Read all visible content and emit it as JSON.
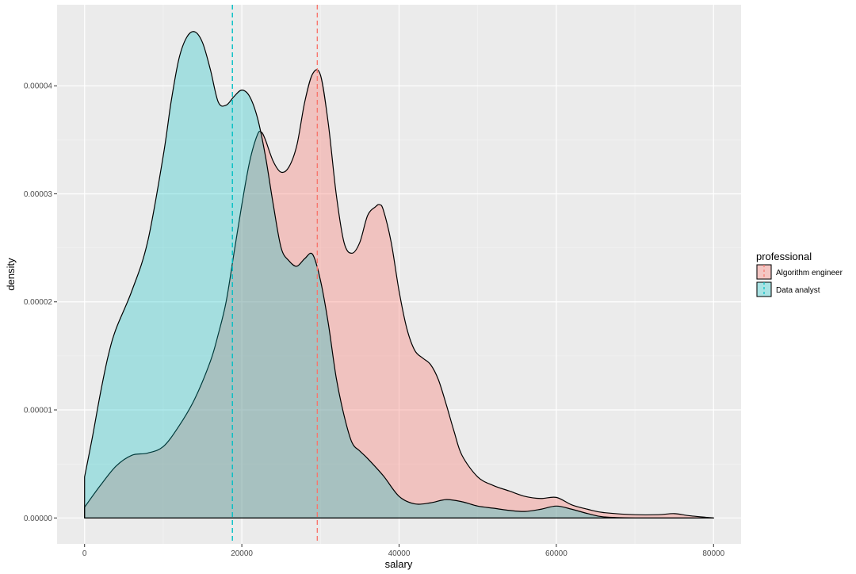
{
  "chart_data": {
    "type": "area",
    "subtype": "density",
    "xlabel": "salary",
    "ylabel": "density",
    "xlim": [
      -3500,
      83500
    ],
    "ylim": [
      -2.4e-06,
      4.75e-05
    ],
    "x_ticks": [
      0,
      20000,
      40000,
      60000,
      80000
    ],
    "x_tick_labels": [
      "0",
      "20000",
      "40000",
      "60000",
      "80000"
    ],
    "y_ticks": [
      0,
      1e-05,
      2e-05,
      3e-05,
      4e-05
    ],
    "y_tick_labels": [
      "0.00000",
      "0.00001",
      "0.00002",
      "0.00003",
      "0.00004"
    ],
    "grid": true,
    "legend": {
      "title": "professional",
      "position": "right"
    },
    "series": [
      {
        "name": "Algorithm engineer",
        "color": "#F8766D",
        "fill_alpha": 0.35,
        "mean": 29600,
        "x": [
          0,
          2000,
          4000,
          6000,
          8000,
          10000,
          12000,
          14000,
          16000,
          17000,
          18000,
          19000,
          20000,
          21000,
          22000,
          22500,
          23000,
          24000,
          25000,
          26000,
          27000,
          28000,
          29000,
          30000,
          31000,
          32000,
          33000,
          34000,
          35000,
          36000,
          37000,
          37500,
          38000,
          39000,
          40000,
          41000,
          42000,
          43000,
          44000,
          45000,
          46000,
          47000,
          48000,
          50000,
          52000,
          54000,
          56000,
          58000,
          60000,
          62000,
          64000,
          66000,
          70000,
          73000,
          75000,
          77000,
          80000
        ],
        "y": [
          1e-06,
          3e-06,
          4.8e-06,
          5.8e-06,
          6e-06,
          6.6e-06,
          8.5e-06,
          1.1e-05,
          1.45e-05,
          1.7e-05,
          2e-05,
          2.45e-05,
          2.9e-05,
          3.3e-05,
          3.55e-05,
          3.57e-05,
          3.5e-05,
          3.3e-05,
          3.2e-05,
          3.25e-05,
          3.45e-05,
          3.85e-05,
          4.11e-05,
          4.1e-05,
          3.65e-05,
          3e-05,
          2.55e-05,
          2.45e-05,
          2.55e-05,
          2.8e-05,
          2.88e-05,
          2.9e-05,
          2.85e-05,
          2.55e-05,
          2.1e-05,
          1.75e-05,
          1.55e-05,
          1.48e-05,
          1.42e-05,
          1.28e-05,
          1.05e-05,
          8e-06,
          5.8e-06,
          3.8e-06,
          3e-06,
          2.5e-06,
          2e-06,
          1.8e-06,
          1.9e-06,
          1.2e-06,
          8e-07,
          5e-07,
          3e-07,
          3e-07,
          4e-07,
          2e-07,
          0
        ]
      },
      {
        "name": "Data analyst",
        "color": "#00BFC4",
        "fill_alpha": 0.3,
        "mean": 18800,
        "x": [
          0,
          1000,
          2000,
          3000,
          4000,
          6000,
          8000,
          10000,
          11000,
          12000,
          13000,
          14000,
          15000,
          16000,
          17000,
          18000,
          19000,
          20000,
          21000,
          22000,
          23000,
          24000,
          25000,
          26000,
          27000,
          28000,
          29000,
          30000,
          31000,
          32000,
          33000,
          34000,
          35000,
          36000,
          38000,
          40000,
          42000,
          44000,
          46000,
          48000,
          50000,
          52000,
          54000,
          56000,
          58000,
          60000,
          62000,
          64000,
          66000,
          70000,
          80000
        ],
        "y": [
          3.8e-06,
          7.5e-06,
          1.15e-05,
          1.5e-05,
          1.75e-05,
          2.1e-05,
          2.55e-05,
          3.35e-05,
          3.85e-05,
          4.25e-05,
          4.45e-05,
          4.5e-05,
          4.4e-05,
          4.15e-05,
          3.85e-05,
          3.82e-05,
          3.9e-05,
          3.96e-05,
          3.9e-05,
          3.7e-05,
          3.35e-05,
          2.9e-05,
          2.5e-05,
          2.38e-05,
          2.33e-05,
          2.4e-05,
          2.44e-05,
          2.2e-05,
          1.8e-05,
          1.3e-05,
          9.5e-06,
          7e-06,
          6.2e-06,
          5.5e-06,
          3.9e-06,
          2e-06,
          1.3e-06,
          1.4e-06,
          1.7e-06,
          1.5e-06,
          1.1e-06,
          9e-07,
          7e-07,
          6e-07,
          8e-07,
          1.1e-06,
          8e-07,
          4e-07,
          1e-07,
          0,
          0
        ]
      }
    ]
  }
}
